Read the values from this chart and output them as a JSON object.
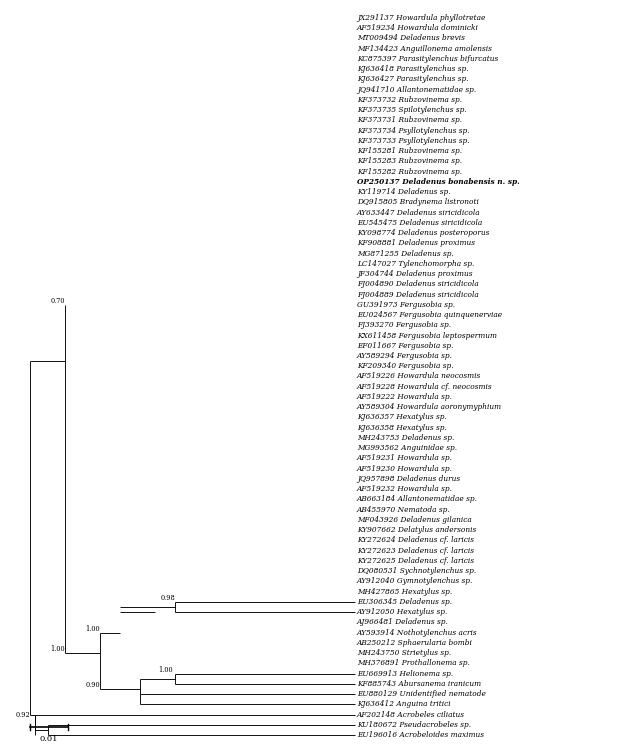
{
  "title": "",
  "scale_bar_label": "0.01",
  "taxa": [
    {
      "label": "JX291137 Howardula phyllotretae",
      "bold": false,
      "italic": true,
      "accession": "JX291137",
      "species": "Howardula phyllotretae"
    },
    {
      "label": "AF519234 Howardula dominicki",
      "bold": false,
      "italic": true,
      "accession": "AF519234",
      "species": "Howardula dominicki"
    },
    {
      "label": "MT009494 Deladenus brevis",
      "bold": false,
      "italic": true,
      "accession": "MT009494",
      "species": "Deladenus brevis"
    },
    {
      "label": "MF134423 Anguillonema amolensis",
      "bold": false,
      "italic": true,
      "accession": "MF134423",
      "species": "Anguillonema amolensis"
    },
    {
      "label": "KC875397 Parasitylenchus bifurcatus",
      "bold": false,
      "italic": true,
      "accession": "KC875397",
      "species": "Parasitylenchus bifurcatus"
    },
    {
      "label": "KJ636418 Parasitylenchus sp.",
      "bold": false,
      "italic": true,
      "accession": "KJ636418",
      "species": "Parasitylenchus sp."
    },
    {
      "label": "KJ636427 Parasitylenchus sp.",
      "bold": false,
      "italic": true,
      "accession": "KJ636427",
      "species": "Parasitylenchus sp."
    },
    {
      "label": "JQ941710 Allantonematidae sp.",
      "bold": false,
      "italic": true,
      "accession": "JQ941710",
      "species": "Allantonematidae sp."
    },
    {
      "label": "KF373732 Rubzovinema sp.",
      "bold": false,
      "italic": true,
      "accession": "KF373732",
      "species": "Rubzovinema sp."
    },
    {
      "label": "KF373735 Spilotylenchus sp.",
      "bold": false,
      "italic": true,
      "accession": "KF373735",
      "species": "Spilotylenchus sp."
    },
    {
      "label": "KF373731 Rubzovinema sp.",
      "bold": false,
      "italic": true,
      "accession": "KF373731",
      "species": "Rubzovinema sp."
    },
    {
      "label": "KF373734 Psyllotylenchus sp.",
      "bold": false,
      "italic": true,
      "accession": "KF373734",
      "species": "Psyllotylenchus sp."
    },
    {
      "label": "KF373733 Psyllotylenchus sp.",
      "bold": false,
      "italic": true,
      "accession": "KF373733",
      "species": "Psyllotylenchus sp."
    },
    {
      "label": "KF155281 Rubzovinema sp.",
      "bold": false,
      "italic": true,
      "accession": "KF155281",
      "species": "Rubzovinema sp."
    },
    {
      "label": "KF155283 Rubzovinema sp.",
      "bold": false,
      "italic": true,
      "accession": "KF155283",
      "species": "Rubzovinema sp."
    },
    {
      "label": "KF155282 Rubzovinema sp.",
      "bold": false,
      "italic": true,
      "accession": "KF155282",
      "species": "Rubzovinema sp."
    },
    {
      "label": "OP250137 Deladenus bonabensis n. sp.",
      "bold": true,
      "italic": true,
      "accession": "OP250137",
      "species": "Deladenus bonabensis n. sp."
    },
    {
      "label": "KY119714 Deladenus sp.",
      "bold": false,
      "italic": true,
      "accession": "KY119714",
      "species": "Deladenus sp."
    },
    {
      "label": "DQ915805 Bradynema listronoti",
      "bold": false,
      "italic": true,
      "accession": "DQ915805",
      "species": "Bradynema listronoti"
    },
    {
      "label": "AY633447 Deladenus siricidicola",
      "bold": false,
      "italic": true,
      "accession": "AY633447",
      "species": "Deladenus siricidicola"
    },
    {
      "label": "EU545475 Deladenus siricidicola",
      "bold": false,
      "italic": true,
      "accession": "EU545475",
      "species": "Deladenus siricidicola"
    },
    {
      "label": "KY098774 Deladenus posteroporus",
      "bold": false,
      "italic": true,
      "accession": "KY098774",
      "species": "Deladenus posteroporus"
    },
    {
      "label": "KF908881 Deladenus proximus",
      "bold": false,
      "italic": true,
      "accession": "KF908881",
      "species": "Deladenus proximus"
    },
    {
      "label": "MG871255 Deladenus sp.",
      "bold": false,
      "italic": true,
      "accession": "MG871255",
      "species": "Deladenus sp."
    },
    {
      "label": "LC147027 Tylenchomorpha sp.",
      "bold": false,
      "italic": true,
      "accession": "LC147027",
      "species": "Tylenchomorpha sp."
    },
    {
      "label": "JF304744 Deladenus proximus",
      "bold": false,
      "italic": true,
      "accession": "JF304744",
      "species": "Deladenus proximus"
    },
    {
      "label": "FJ004890 Deladenus siricidicola",
      "bold": false,
      "italic": true,
      "accession": "FJ004890",
      "species": "Deladenus siricidicola"
    },
    {
      "label": "FJ004889 Deladenus siricidicola",
      "bold": false,
      "italic": true,
      "accession": "FJ004889",
      "species": "Deladenus siricidicola"
    },
    {
      "label": "GU391973 Fergusobia sp.",
      "bold": false,
      "italic": true,
      "accession": "GU391973",
      "species": "Fergusobia sp."
    },
    {
      "label": "EU024567 Fergusobia quinquenerviae",
      "bold": false,
      "italic": true,
      "accession": "EU024567",
      "species": "Fergusobia quinquenerviae"
    },
    {
      "label": "FJ393270 Fergusobia sp.",
      "bold": false,
      "italic": true,
      "accession": "FJ393270",
      "species": "Fergusobia sp."
    },
    {
      "label": "KX611458 Fergusobia leptospermum",
      "bold": false,
      "italic": true,
      "accession": "KX611458",
      "species": "Fergusobia leptospermum"
    },
    {
      "label": "EF011667 Fergusobia sp.",
      "bold": false,
      "italic": true,
      "accession": "EF011667",
      "species": "Fergusobia sp."
    },
    {
      "label": "AY589294 Fergusobia sp.",
      "bold": false,
      "italic": true,
      "accession": "AY589294",
      "species": "Fergusobia sp."
    },
    {
      "label": "KF209340 Fergusobia sp.",
      "bold": false,
      "italic": true,
      "accession": "KF209340",
      "species": "Fergusobia sp."
    },
    {
      "label": "AF519226 Howardula neocosmis",
      "bold": false,
      "italic": true,
      "accession": "AF519226",
      "species": "Howardula neocosmis"
    },
    {
      "label": "AF519228 Howardula cf. neocosmis",
      "bold": false,
      "italic": true,
      "accession": "AF519228",
      "species": "Howardula cf. neocosmis"
    },
    {
      "label": "AF519222 Howardula sp.",
      "bold": false,
      "italic": true,
      "accession": "AF519222",
      "species": "Howardula sp."
    },
    {
      "label": "AY589304 Howardula aoronymyphium",
      "bold": false,
      "italic": true,
      "accession": "AY589304",
      "species": "Howardula aoronymyphium"
    },
    {
      "label": "KJ636357 Hexatylus sp.",
      "bold": false,
      "italic": true,
      "accession": "KJ636357",
      "species": "Hexatylus sp."
    },
    {
      "label": "KJ636358 Hexatylus sp.",
      "bold": false,
      "italic": true,
      "accession": "KJ636358",
      "species": "Hexatylus sp."
    },
    {
      "label": "MH243753 Deladenus sp.",
      "bold": false,
      "italic": true,
      "accession": "MH243753",
      "species": "Deladenus sp."
    },
    {
      "label": "MG993562 Anguinidae sp.",
      "bold": false,
      "italic": true,
      "accession": "MG993562",
      "species": "Anguinidae sp."
    },
    {
      "label": "AF519231 Howardula sp.",
      "bold": false,
      "italic": true,
      "accession": "AF519231",
      "species": "Howardula sp."
    },
    {
      "label": "AF519230 Howardula sp.",
      "bold": false,
      "italic": true,
      "accession": "AF519230",
      "species": "Howardula sp."
    },
    {
      "label": "JQ957898 Deladenus durus",
      "bold": false,
      "italic": true,
      "accession": "JQ957898",
      "species": "Deladenus durus"
    },
    {
      "label": "AF519232 Howardula sp.",
      "bold": false,
      "italic": true,
      "accession": "AF519232",
      "species": "Howardula sp."
    },
    {
      "label": "AB663184 Allantonematidae sp.",
      "bold": false,
      "italic": true,
      "accession": "AB663184",
      "species": "Allantonematidae sp."
    },
    {
      "label": "AB455970 Nematoda sp.",
      "bold": false,
      "italic": true,
      "accession": "AB455970",
      "species": "Nematoda sp."
    },
    {
      "label": "MF043926 Deladenus gilanica",
      "bold": false,
      "italic": true,
      "accession": "MF043926",
      "species": "Deladenus gilanica"
    },
    {
      "label": "KY907662 Delatylus andersonis",
      "bold": false,
      "italic": true,
      "accession": "KY907662",
      "species": "Delatylus andersonis"
    },
    {
      "label": "KY272624 Deladenus cf. laricis",
      "bold": false,
      "italic": true,
      "accession": "KY272624",
      "species": "Deladenus cf. laricis"
    },
    {
      "label": "KY272623 Deladenus cf. laricis",
      "bold": false,
      "italic": true,
      "accession": "KY272623",
      "species": "Deladenus cf. laricis"
    },
    {
      "label": "KY272625 Deladenus cf. laricis",
      "bold": false,
      "italic": true,
      "accession": "KY272625",
      "species": "Deladenus cf. laricis"
    },
    {
      "label": "DQ080531 Sychnotylenchus sp.",
      "bold": false,
      "italic": true,
      "accession": "DQ080531",
      "species": "Sychnotylenchus sp."
    },
    {
      "label": "AY912040 Gymnotylenchus sp.",
      "bold": false,
      "italic": true,
      "accession": "AY912040",
      "species": "Gymnotylenchus sp."
    },
    {
      "label": "MH427865 Hexatylus sp.",
      "bold": false,
      "italic": true,
      "accession": "MH427865",
      "species": "Hexatylus sp."
    },
    {
      "label": "EU306345 Deladenus sp.",
      "bold": false,
      "italic": true,
      "accession": "EU306345",
      "species": "Deladenus sp."
    },
    {
      "label": "AY912050 Hexatylus sp.",
      "bold": false,
      "italic": true,
      "accession": "AY912050",
      "species": "Hexatylus sp."
    },
    {
      "label": "AJ966481 Deladenus sp.",
      "bold": false,
      "italic": true,
      "accession": "AJ966481",
      "species": "Deladenus sp."
    },
    {
      "label": "AY593914 Nothotylenchus acris",
      "bold": false,
      "italic": true,
      "accession": "AY593914",
      "species": "Nothotylenchus acris"
    },
    {
      "label": "AB250212 Sphaerularia bombi",
      "bold": false,
      "italic": true,
      "accession": "AB250212",
      "species": "Sphaerularia bombi"
    },
    {
      "label": "MH243750 Strietylus sp.",
      "bold": false,
      "italic": true,
      "accession": "MH243750",
      "species": "Strietylus sp."
    },
    {
      "label": "MH376891 Prothallonema sp.",
      "bold": false,
      "italic": true,
      "accession": "MH376891",
      "species": "Prothallonema sp."
    },
    {
      "label": "EU669913 Helionema sp.",
      "bold": false,
      "italic": true,
      "accession": "EU669913",
      "species": "Helionema sp."
    },
    {
      "label": "KF885743 Abursanema iranicum",
      "bold": false,
      "italic": true,
      "accession": "KF885743",
      "species": "Abursanema iranicum"
    },
    {
      "label": "EU880129 Unidentified nematode",
      "bold": false,
      "italic": false,
      "accession": "EU880129",
      "species": "Unidentified nematode"
    },
    {
      "label": "KJ636412 Anguina tritici",
      "bold": false,
      "italic": true,
      "accession": "KJ636412",
      "species": "Anguina tritici"
    },
    {
      "label": "AF202148 Acrobeles ciliatus",
      "bold": false,
      "italic": true,
      "accession": "AF202148",
      "species": "Acrobeles ciliatus"
    },
    {
      "label": "KU180672 Pseudacrobeles sp.",
      "bold": false,
      "italic": true,
      "accession": "KU180672",
      "species": "Pseudacrobeles sp."
    },
    {
      "label": "EU196016 Acrobeloides maximus",
      "bold": false,
      "italic": true,
      "accession": "EU196016",
      "species": "Acrobeloides maximus"
    }
  ],
  "background_color": "#ffffff",
  "line_color": "#000000",
  "text_color": "#000000",
  "bold_line_color": "#000000"
}
